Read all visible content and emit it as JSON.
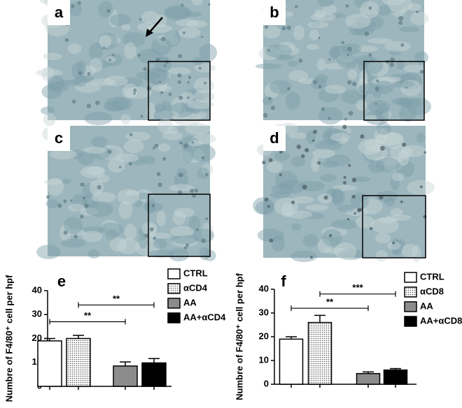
{
  "panel_labels": [
    "a",
    "b",
    "c",
    "d"
  ],
  "chart_data": [
    {
      "type": "bar",
      "panel_label": "e",
      "ylabel": "Numbre of F4/80⁺ cell per hpf",
      "ylim": [
        0,
        40
      ],
      "yticks": [
        0,
        10,
        20,
        30,
        40
      ],
      "series": [
        {
          "name": "CTRL",
          "color": "#ffffff",
          "values": [
            19
          ],
          "errors": [
            1
          ]
        },
        {
          "name": "αCD4",
          "color": "#ffffff",
          "pattern": "dots",
          "values": [
            20
          ],
          "errors": [
            1.3
          ]
        },
        {
          "name": "AA",
          "color": "#8c8c8c",
          "values": [
            8.5
          ],
          "errors": [
            1.7
          ]
        },
        {
          "name": "AA+αCD4",
          "color": "#000000",
          "values": [
            9.8
          ],
          "errors": [
            1.8
          ]
        }
      ],
      "annotations": [
        {
          "text": "**",
          "from": 0,
          "to": 2,
          "y": 27
        },
        {
          "text": "**",
          "from": 1,
          "to": 3,
          "y": 34
        }
      ]
    },
    {
      "type": "bar",
      "panel_label": "f",
      "ylabel": "Numbre of F4/80⁺ cell per hpf",
      "ylim": [
        0,
        40
      ],
      "yticks": [
        0,
        10,
        20,
        30,
        40
      ],
      "series": [
        {
          "name": "CTRL",
          "color": "#ffffff",
          "values": [
            19
          ],
          "errors": [
            1
          ]
        },
        {
          "name": "αCD8",
          "color": "#ffffff",
          "pattern": "dots",
          "values": [
            26
          ],
          "errors": [
            3
          ]
        },
        {
          "name": "AA",
          "color": "#8c8c8c",
          "values": [
            4.5
          ],
          "errors": [
            0.7
          ]
        },
        {
          "name": "AA+αCD8",
          "color": "#000000",
          "values": [
            6
          ],
          "errors": [
            0.6
          ]
        }
      ],
      "annotations": [
        {
          "text": "**",
          "from": 0,
          "to": 2,
          "y": 32
        },
        {
          "text": "***",
          "from": 1,
          "to": 3,
          "y": 38
        }
      ]
    }
  ]
}
